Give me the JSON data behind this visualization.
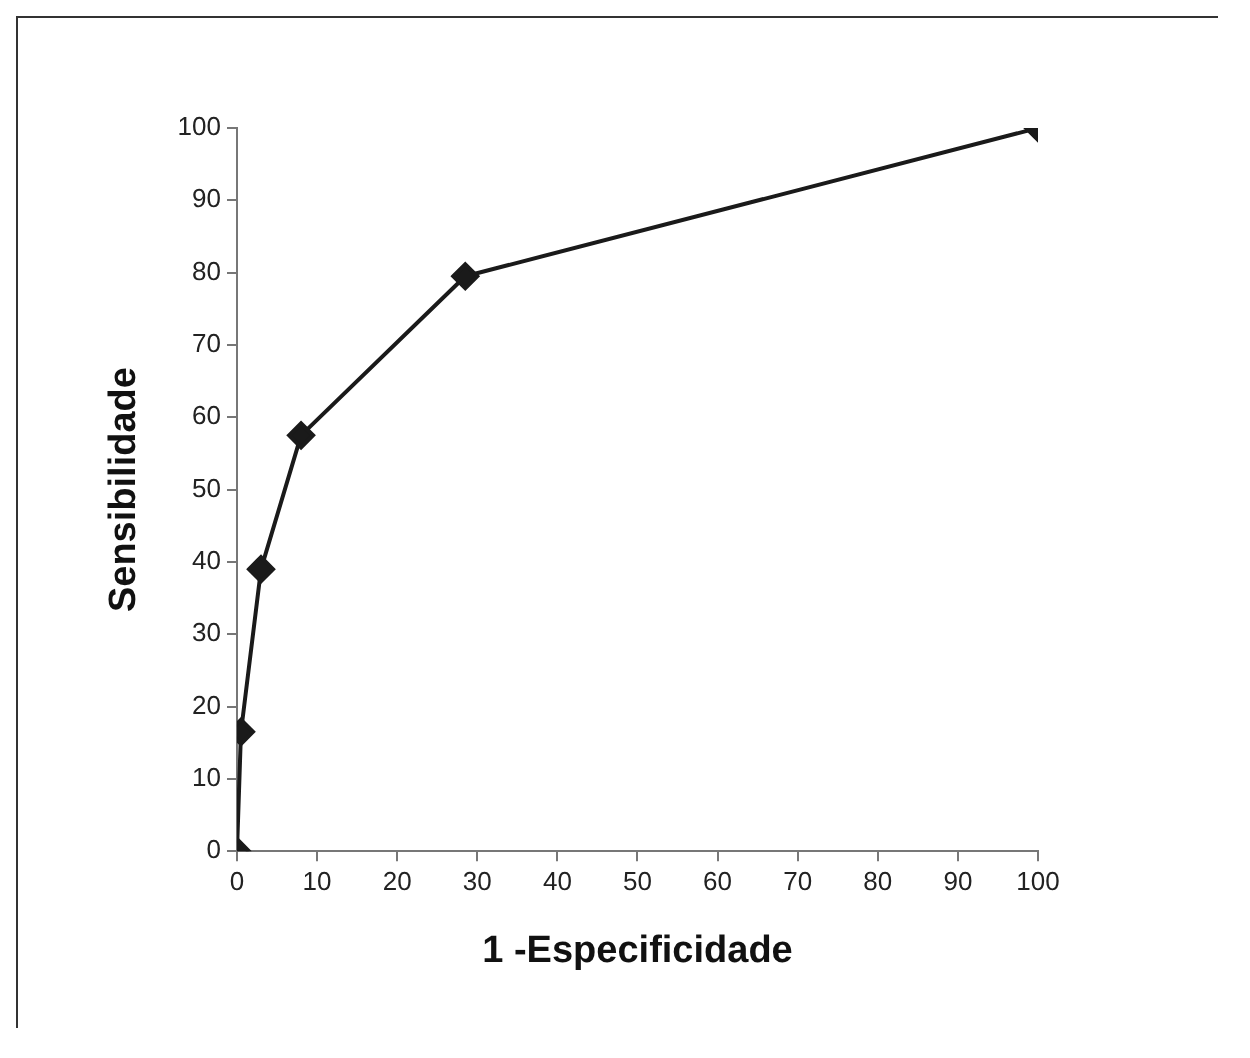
{
  "chart_data": {
    "type": "line",
    "xlabel": "1 -Especificidade",
    "ylabel": "Sensibilidade",
    "x": [
      0,
      0.5,
      3,
      8,
      28.5,
      100
    ],
    "series": [
      {
        "color": "#1a1a1a",
        "values": [
          0,
          16.5,
          39,
          57.5,
          79.5,
          100
        ]
      }
    ],
    "xlim": [
      0,
      100
    ],
    "xticks": [
      0,
      10,
      20,
      30,
      40,
      50,
      60,
      70,
      80,
      90,
      100
    ],
    "ylim": [
      0,
      100
    ],
    "yticks": [
      0,
      10,
      20,
      30,
      40,
      50,
      60,
      70,
      80,
      90,
      100
    ],
    "grid": false,
    "legend": false,
    "marker": "diamond",
    "line_style": "solid"
  }
}
